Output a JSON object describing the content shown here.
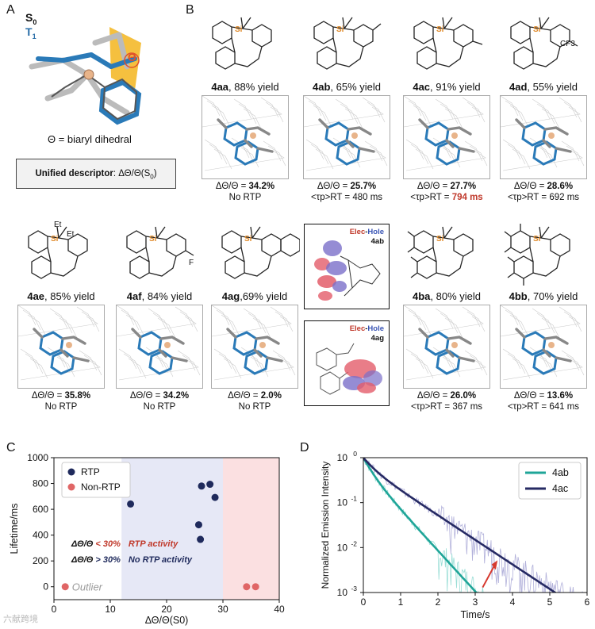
{
  "panels": {
    "a": "A",
    "b": "B",
    "c": "C",
    "d": "D"
  },
  "panelA": {
    "s0": "S",
    "s0_sub": "0",
    "t1": "T",
    "t1_sub": "1",
    "theta_symbol": "Θ",
    "caption": "Θ = biaryl dihedral",
    "descriptor_bold": "Unified descriptor",
    "descriptor_rest": ": ΔΘ/Θ(S",
    "descriptor_sub": "0",
    "descriptor_end": ")"
  },
  "compounds_row1": [
    {
      "id": "4aa",
      "yield": ", 88% yield",
      "metric_label": "ΔΘ/Θ = ",
      "metric": "34.2%",
      "rtp": "No RTP",
      "rtp_highlight": ""
    },
    {
      "id": "4ab",
      "yield": ", 65% yield",
      "metric_label": "ΔΘ/Θ = ",
      "metric": "25.7%",
      "rtp": "<τp>RT = 480 ms",
      "rtp_highlight": ""
    },
    {
      "id": "4ac",
      "yield": ", 91% yield",
      "metric_label": "ΔΘ/Θ = ",
      "metric": "27.7%",
      "rtp": "<τp>RT = ",
      "rtp_highlight": "794 ms"
    },
    {
      "id": "4ad",
      "yield": ", 55% yield",
      "metric_label": "ΔΘ/Θ = ",
      "metric": "28.6%",
      "rtp": "<τp>RT = 692 ms",
      "rtp_highlight": ""
    }
  ],
  "compounds_row2": [
    {
      "id": "4ae",
      "yield": ", 85% yield",
      "metric_label": "ΔΘ/Θ = ",
      "metric": "35.8%",
      "rtp": "No RTP"
    },
    {
      "id": "4af",
      "yield": ", 84% yield",
      "metric_label": "ΔΘ/Θ = ",
      "metric": "34.2%",
      "rtp": "No RTP"
    },
    {
      "id": "4ag",
      "yield": ",69% yield",
      "metric_label": "ΔΘ/Θ = ",
      "metric": "2.0%",
      "rtp": "No RTP"
    },
    {
      "id": "4ba",
      "yield": ", 80% yield",
      "metric_label": "ΔΘ/Θ = ",
      "metric": "26.0%",
      "rtp": "<τp>RT = 367 ms"
    },
    {
      "id": "4bb",
      "yield": ", 70% yield",
      "metric_label": "ΔΘ/Θ = ",
      "metric": "13.6%",
      "rtp": "<τp>RT = 641 ms"
    }
  ],
  "struct_labels": {
    "si": "Si",
    "et1": "Et",
    "et2": "Et",
    "f": "F",
    "cf3": "CF3"
  },
  "elec_hole": [
    {
      "elec": "Elec",
      "dash": "-",
      "hole": "Hole",
      "id": "4ab"
    },
    {
      "elec": "Elec",
      "dash": "-",
      "hole": "Hole",
      "id": "4ag"
    }
  ],
  "watermark": "六献跨境",
  "colors": {
    "rtp": "#1f2a5c",
    "nonrtp": "#e06666",
    "blue_band": "#e6e8f6",
    "red_band": "#fbe0e1",
    "teal": "#1fa598",
    "navy": "#262a63",
    "red_text": "#c0392b"
  },
  "chart_data": [
    {
      "type": "scatter",
      "xlabel": "ΔΘ/Θ(S0)",
      "ylabel": "Lifetime/ms",
      "xlim": [
        0,
        40
      ],
      "ylim": [
        -100,
        1000
      ],
      "xticks": [
        0,
        10,
        20,
        30,
        40
      ],
      "yticks": [
        0,
        200,
        400,
        600,
        800,
        1000
      ],
      "bands": [
        {
          "from": 12,
          "to": 30,
          "color": "#e6e8f6"
        },
        {
          "from": 30,
          "to": 40,
          "color": "#fbe0e1"
        }
      ],
      "legend": {
        "placement": "top-left",
        "entries": [
          "RTP",
          "Non-RTP"
        ]
      },
      "series": [
        {
          "name": "RTP",
          "color": "#1f2a5c",
          "points": [
            [
              13.6,
              641
            ],
            [
              25.7,
              480
            ],
            [
              26.0,
              367
            ],
            [
              26.2,
              780
            ],
            [
              27.7,
              794
            ],
            [
              28.6,
              692
            ]
          ]
        },
        {
          "name": "Non-RTP",
          "color": "#e06666",
          "points": [
            [
              2.0,
              0
            ],
            [
              34.2,
              0
            ],
            [
              35.8,
              0
            ]
          ]
        }
      ],
      "annotations": [
        {
          "prefix": "ΔΘ/Θ ",
          "cmp": "< 30%",
          "text": "RTP activity",
          "color": "#c0392b"
        },
        {
          "prefix": "ΔΘ/Θ ",
          "cmp": "> 30%",
          "text": "No RTP activity",
          "color": "#1f2a5c"
        },
        {
          "text": "Outlier",
          "color": "#9a9a9a"
        }
      ]
    },
    {
      "type": "line",
      "xlabel": "Time/s",
      "ylabel": "Normalized Emission Intensity",
      "xlim": [
        0,
        6
      ],
      "ylim": [
        0.001,
        1
      ],
      "yscale": "log",
      "xticks": [
        0,
        1,
        2,
        3,
        4,
        5,
        6
      ],
      "legend": {
        "placement": "top-right"
      },
      "series": [
        {
          "name": "4ab",
          "color": "#1fa598",
          "lifetimes": [
            0.2,
            0.48
          ],
          "weights": [
            0.45,
            0.55
          ]
        },
        {
          "name": "4ac",
          "color": "#262a63",
          "lifetimes": [
            0.25,
            0.794
          ],
          "weights": [
            0.35,
            0.65
          ]
        }
      ]
    }
  ]
}
